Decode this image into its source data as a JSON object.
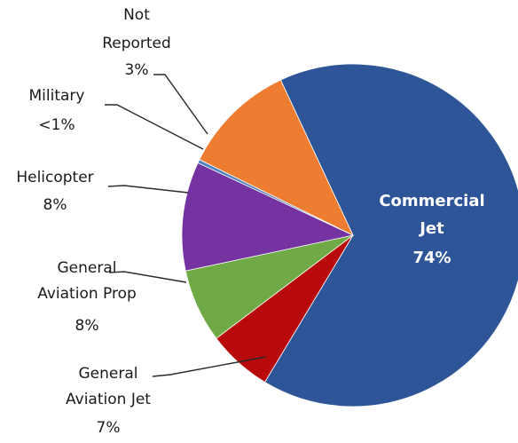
{
  "chart_data": {
    "type": "pie",
    "slices": [
      {
        "label_lines": [
          "Commercial",
          "Jet"
        ],
        "pct_label": "74%",
        "value": 74,
        "color": "#2E5597",
        "label_inside": true
      },
      {
        "label_lines": [
          "General",
          "Aviation Jet"
        ],
        "pct_label": "7%",
        "value": 7,
        "color": "#B80A0A"
      },
      {
        "label_lines": [
          "General",
          "Aviation Prop"
        ],
        "pct_label": "8%",
        "value": 8,
        "color": "#6FAA46"
      },
      {
        "label_lines": [
          "Helicopter"
        ],
        "pct_label": "8%",
        "value": 8,
        "color": "#7433A0"
      },
      {
        "label_lines": [
          "Military"
        ],
        "pct_label": "<1%",
        "value": 0.4,
        "color": "#4F81BD"
      },
      {
        "label_lines": [
          "Not",
          "Reported"
        ],
        "pct_label": "3%",
        "value": 3,
        "color": "#EE7D31"
      }
    ]
  }
}
